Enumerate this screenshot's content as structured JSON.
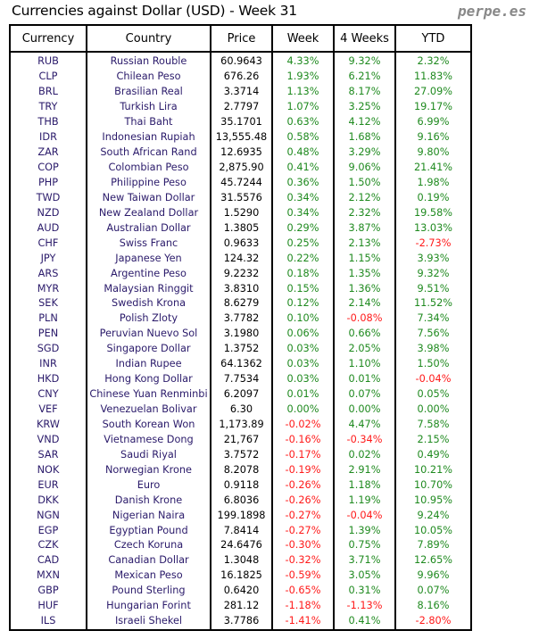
{
  "title": "Currencies against Dollar (USD) - Week 31",
  "brand": "perpe.es",
  "colors": {
    "positive": "#1f8a1f",
    "negative": "#ff1a1a"
  },
  "headers": [
    "Currency",
    "Country",
    "Price",
    "Week",
    "4 Weeks",
    "YTD"
  ],
  "rows": [
    [
      "RUB",
      "Russian Rouble",
      "60.9643",
      "4.33%",
      "9.32%",
      "2.32%"
    ],
    [
      "CLP",
      "Chilean Peso",
      "676.26",
      "1.93%",
      "6.21%",
      "11.83%"
    ],
    [
      "BRL",
      "Brasilian Real",
      "3.3714",
      "1.13%",
      "8.17%",
      "27.09%"
    ],
    [
      "TRY",
      "Turkish Lira",
      "2.7797",
      "1.07%",
      "3.25%",
      "19.17%"
    ],
    [
      "THB",
      "Thai Baht",
      "35.1701",
      "0.63%",
      "4.12%",
      "6.99%"
    ],
    [
      "IDR",
      "Indonesian Rupiah",
      "13,555.48",
      "0.58%",
      "1.68%",
      "9.16%"
    ],
    [
      "ZAR",
      "South African Rand",
      "12.6935",
      "0.48%",
      "3.29%",
      "9.80%"
    ],
    [
      "COP",
      "Colombian Peso",
      "2,875.90",
      "0.41%",
      "9.06%",
      "21.41%"
    ],
    [
      "PHP",
      "Philippine Peso",
      "45.7244",
      "0.36%",
      "1.50%",
      "1.98%"
    ],
    [
      "TWD",
      "New Taiwan Dollar",
      "31.5576",
      "0.34%",
      "2.12%",
      "0.19%"
    ],
    [
      "NZD",
      "New Zealand Dollar",
      "1.5290",
      "0.34%",
      "2.32%",
      "19.58%"
    ],
    [
      "AUD",
      "Australian Dollar",
      "1.3805",
      "0.29%",
      "3.87%",
      "13.03%"
    ],
    [
      "CHF",
      "Swiss Franc",
      "0.9633",
      "0.25%",
      "2.13%",
      "-2.73%"
    ],
    [
      "JPY",
      "Japanese Yen",
      "124.32",
      "0.22%",
      "1.15%",
      "3.93%"
    ],
    [
      "ARS",
      "Argentine Peso",
      "9.2232",
      "0.18%",
      "1.35%",
      "9.32%"
    ],
    [
      "MYR",
      "Malaysian Ringgit",
      "3.8310",
      "0.15%",
      "1.36%",
      "9.51%"
    ],
    [
      "SEK",
      "Swedish Krona",
      "8.6279",
      "0.12%",
      "2.14%",
      "11.52%"
    ],
    [
      "PLN",
      "Polish Zloty",
      "3.7782",
      "0.10%",
      "-0.08%",
      "7.34%"
    ],
    [
      "PEN",
      "Peruvian Nuevo Sol",
      "3.1980",
      "0.06%",
      "0.66%",
      "7.56%"
    ],
    [
      "SGD",
      "Singapore Dollar",
      "1.3752",
      "0.03%",
      "2.05%",
      "3.98%"
    ],
    [
      "INR",
      "Indian Rupee",
      "64.1362",
      "0.03%",
      "1.10%",
      "1.50%"
    ],
    [
      "HKD",
      "Hong Kong Dollar",
      "7.7534",
      "0.03%",
      "0.01%",
      "-0.04%"
    ],
    [
      "CNY",
      "Chinese Yuan Renminbi",
      "6.2097",
      "0.01%",
      "0.07%",
      "0.05%"
    ],
    [
      "VEF",
      "Venezuelan Bolivar",
      "6.30",
      "0.00%",
      "0.00%",
      "0.00%"
    ],
    [
      "KRW",
      "South Korean Won",
      "1,173.89",
      "-0.02%",
      "4.47%",
      "7.58%"
    ],
    [
      "VND",
      "Vietnamese Dong",
      "21,767",
      "-0.16%",
      "-0.34%",
      "2.15%"
    ],
    [
      "SAR",
      "Saudi Riyal",
      "3.7572",
      "-0.17%",
      "0.02%",
      "0.49%"
    ],
    [
      "NOK",
      "Norwegian Krone",
      "8.2078",
      "-0.19%",
      "2.91%",
      "10.21%"
    ],
    [
      "EUR",
      "Euro",
      "0.9118",
      "-0.26%",
      "1.18%",
      "10.70%"
    ],
    [
      "DKK",
      "Danish Krone",
      "6.8036",
      "-0.26%",
      "1.19%",
      "10.95%"
    ],
    [
      "NGN",
      "Nigerian Naira",
      "199.1898",
      "-0.27%",
      "-0.04%",
      "9.24%"
    ],
    [
      "EGP",
      "Egyptian Pound",
      "7.8414",
      "-0.27%",
      "1.39%",
      "10.05%"
    ],
    [
      "CZK",
      "Czech Koruna",
      "24.6476",
      "-0.30%",
      "0.75%",
      "7.89%"
    ],
    [
      "CAD",
      "Canadian Dollar",
      "1.3048",
      "-0.32%",
      "3.71%",
      "12.65%"
    ],
    [
      "MXN",
      "Mexican Peso",
      "16.1825",
      "-0.59%",
      "3.05%",
      "9.96%"
    ],
    [
      "GBP",
      "Pound Sterling",
      "0.6420",
      "-0.65%",
      "0.31%",
      "0.07%"
    ],
    [
      "HUF",
      "Hungarian Forint",
      "281.12",
      "-1.18%",
      "-1.13%",
      "8.16%"
    ],
    [
      "ILS",
      "Israeli Shekel",
      "3.7786",
      "-1.41%",
      "0.41%",
      "-2.80%"
    ]
  ]
}
